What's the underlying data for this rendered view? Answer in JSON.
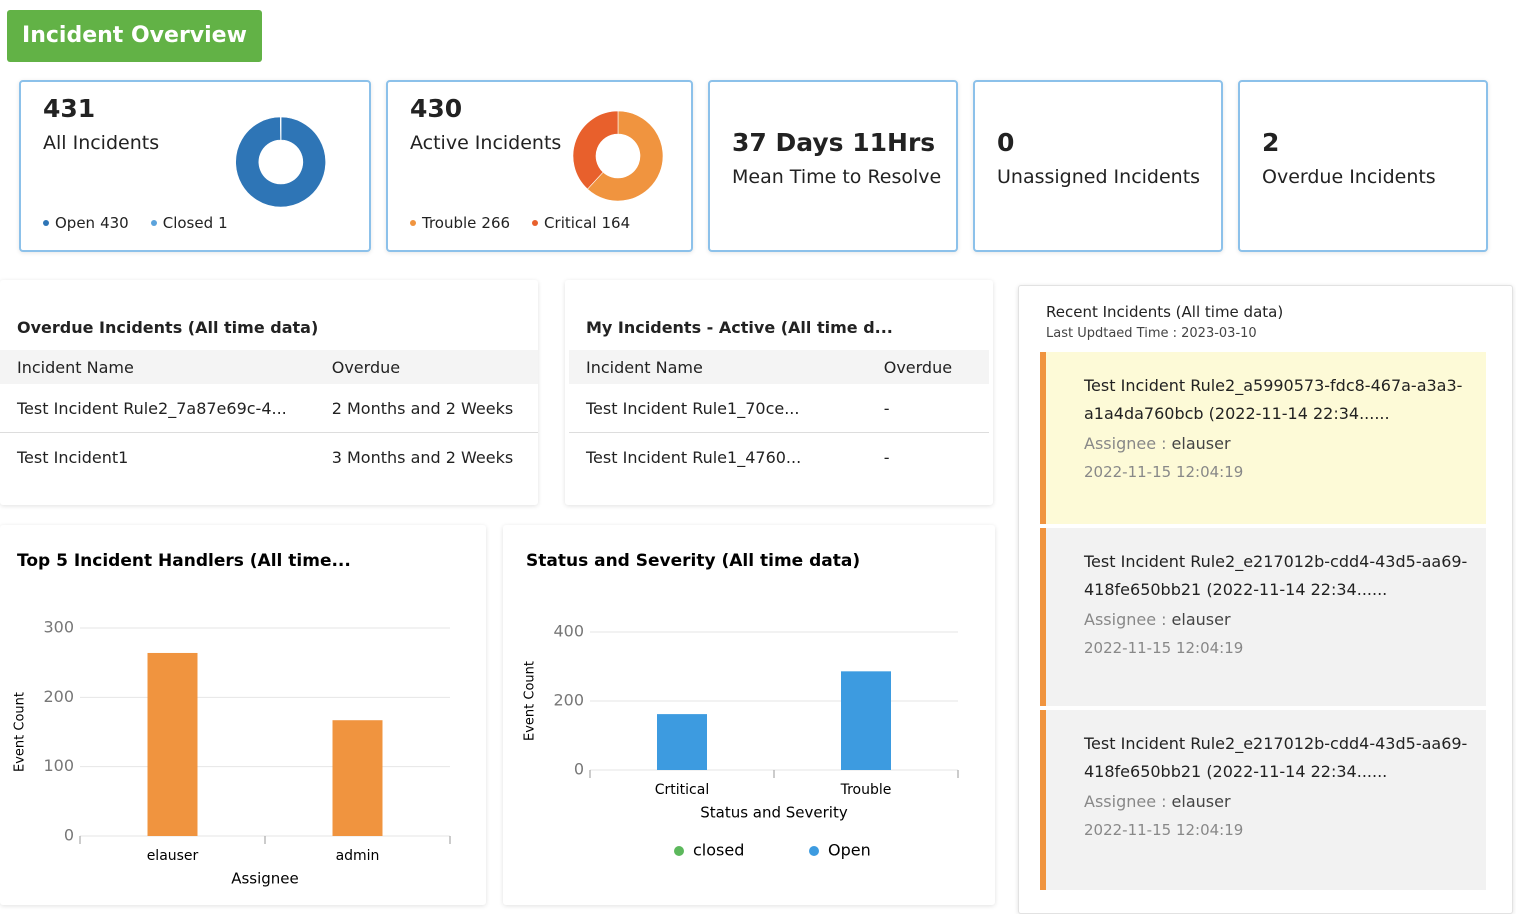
{
  "header": {
    "title": "Incident Overview"
  },
  "chart_data": [
    {
      "type": "pie",
      "total": 431,
      "title": "All Incidents",
      "categories": [
        "Open",
        "Closed"
      ],
      "values": [
        430,
        1
      ],
      "colors": [
        "#2e75b6",
        "#5ba3dc"
      ]
    },
    {
      "type": "pie",
      "total": 430,
      "title": "Active Incidents",
      "categories": [
        "Trouble",
        "Critical"
      ],
      "values": [
        266,
        164
      ],
      "colors": [
        "#f0943f",
        "#e8602c"
      ]
    },
    {
      "type": "bar",
      "title": "Top 5 Incident Handlers (All time...",
      "categories": [
        "elauser",
        "admin"
      ],
      "values": [
        264,
        167
      ],
      "color": "#f0943f",
      "ylim": [
        0,
        300
      ],
      "yticks": [
        0,
        100,
        200,
        300
      ],
      "grid": true,
      "xlabel": "Assignee",
      "ylabel": "Event Count"
    },
    {
      "type": "bar",
      "title": "Status and Severity (All time data)",
      "categories": [
        "Crtitical",
        "Trouble"
      ],
      "series": [
        {
          "name": "closed",
          "color": "#5cb85c",
          "values": [
            null,
            null
          ]
        },
        {
          "name": "Open",
          "color": "#3d9be0",
          "values": [
            162,
            286
          ]
        }
      ],
      "ylim": [
        0,
        400
      ],
      "yticks": [
        0,
        200,
        400
      ],
      "grid": true,
      "xlabel": "Status and Severity",
      "ylabel": "Event Count"
    }
  ],
  "kpis": [
    {
      "value": "37 Days  11Hrs",
      "label": "Mean Time to Resolve"
    },
    {
      "value": 0,
      "label": "Unassigned Incidents"
    },
    {
      "value": 2,
      "label": "Overdue Incidents"
    }
  ],
  "overdue_table": {
    "title": "Overdue Incidents (All time data)",
    "columns": [
      "Incident Name",
      "Overdue"
    ],
    "rows": [
      [
        "Test Incident Rule2_7a87e69c-4...",
        "2 Months and 2 Weeks"
      ],
      [
        "Test Incident1",
        "3 Months and 2 Weeks"
      ]
    ]
  },
  "my_incidents": {
    "title": "My Incidents - Active (All time d...",
    "columns": [
      "Incident Name",
      "Overdue"
    ],
    "rows": [
      [
        "Test Incident Rule1_70ce...",
        "-"
      ],
      [
        "Test Incident Rule1_4760...",
        "-"
      ]
    ]
  },
  "recent": {
    "title": "Recent Incidents (All time data)",
    "updated": "Last Updtaed Time : 2023-03-10",
    "assignee_label": "Assignee :",
    "items": [
      {
        "title": "Test Incident Rule2_a5990573-fdc8-467a-a3a3-a1a4da760bcb (2022-11-14 22:34......",
        "assignee": "elauser",
        "time": "2022-11-15 12:04:19"
      },
      {
        "title": "Test Incident Rule2_e217012b-cdd4-43d5-aa69-418fe650bb21 (2022-11-14 22:34......",
        "assignee": "elauser",
        "time": "2022-11-15 12:04:19"
      },
      {
        "title": "Test Incident Rule2_e217012b-cdd4-43d5-aa69-418fe650bb21 (2022-11-14 22:34......",
        "assignee": "elauser",
        "time": "2022-11-15 12:04:19"
      }
    ]
  }
}
